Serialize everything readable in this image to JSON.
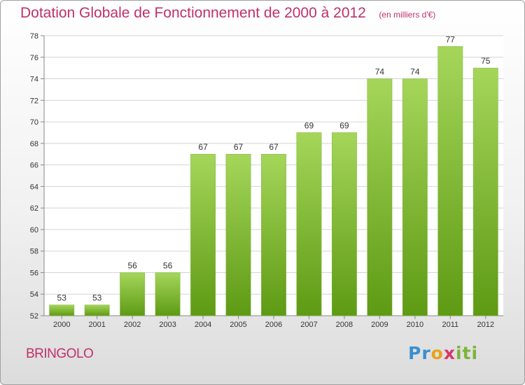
{
  "header": {
    "title": "Dotation Globale de Fonctionnement de 2000 à 2012",
    "subtitle": "(en milliers d'€)"
  },
  "commune": "BRINGOLO",
  "logo": {
    "text": "Proxiti"
  },
  "colors": {
    "title": "#c0306a",
    "bar_top": "#a5d65a",
    "bar_bottom": "#5e9a14",
    "grid": "#d4d4d4"
  },
  "chart_data": {
    "type": "bar",
    "categories": [
      "2000",
      "2001",
      "2002",
      "2003",
      "2004",
      "2005",
      "2006",
      "2007",
      "2008",
      "2009",
      "2010",
      "2011",
      "2012"
    ],
    "values": [
      53,
      53,
      56,
      56,
      67,
      67,
      67,
      69,
      69,
      74,
      74,
      77,
      75
    ],
    "ylim": [
      52,
      78
    ],
    "yticks": [
      52,
      54,
      56,
      58,
      60,
      62,
      64,
      66,
      68,
      70,
      72,
      74,
      76,
      78
    ],
    "grid": true,
    "data_labels": true
  }
}
